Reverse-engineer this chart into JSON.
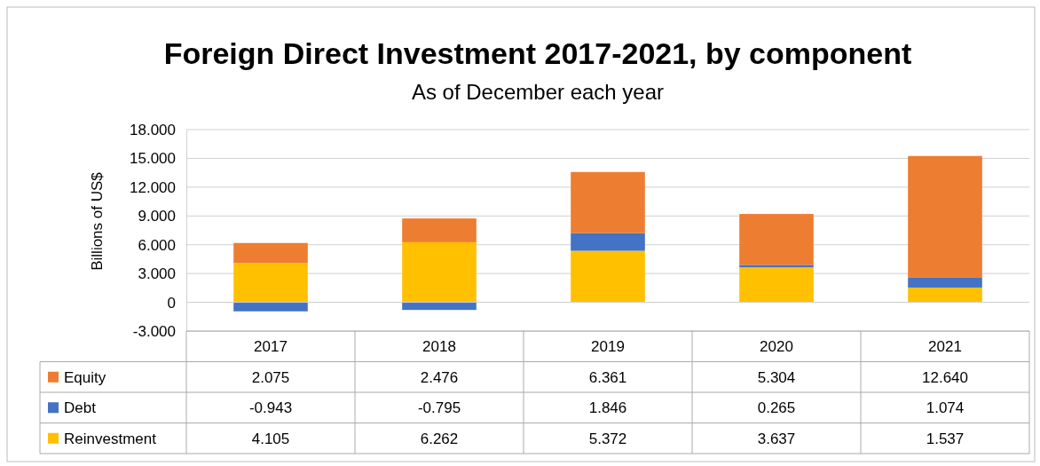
{
  "chart_data": {
    "type": "bar",
    "title": "Foreign Direct Investment 2017-2021, by component",
    "subtitle": "As of December each year",
    "ylabel": "Billions of US$",
    "categories": [
      "2017",
      "2018",
      "2019",
      "2020",
      "2021"
    ],
    "stacked": true,
    "grid": "y",
    "legend": "bottom",
    "ylim": [
      -3,
      18
    ],
    "yticks": [
      {
        "value": -3,
        "label": "-3.000"
      },
      0,
      {
        "value": 3,
        "label": "3.000"
      },
      {
        "value": 6,
        "label": "6.000"
      },
      {
        "value": 9,
        "label": "9.000"
      },
      {
        "value": 12,
        "label": "12.000"
      },
      {
        "value": 15,
        "label": "15.000"
      },
      {
        "value": 18,
        "label": "18.000"
      }
    ],
    "series": [
      {
        "name": "Reinvestment",
        "color": "#ffc000",
        "values": [
          4.105,
          6.262,
          5.372,
          3.637,
          1.537
        ],
        "value_labels": [
          "4.105",
          "6.262",
          "5.372",
          "3.637",
          "1.537"
        ]
      },
      {
        "name": "Debt",
        "color": "#4472c4",
        "values": [
          -0.943,
          -0.795,
          1.846,
          0.265,
          1.074
        ],
        "value_labels": [
          "-0.943",
          "-0.795",
          "1.846",
          "0.265",
          "1.074"
        ]
      },
      {
        "name": "Equity",
        "color": "#ed7d31",
        "values": [
          2.075,
          2.476,
          6.361,
          5.304,
          12.64
        ],
        "value_labels": [
          "2.075",
          "2.476",
          "6.361",
          "5.304",
          "12.640"
        ]
      }
    ]
  }
}
